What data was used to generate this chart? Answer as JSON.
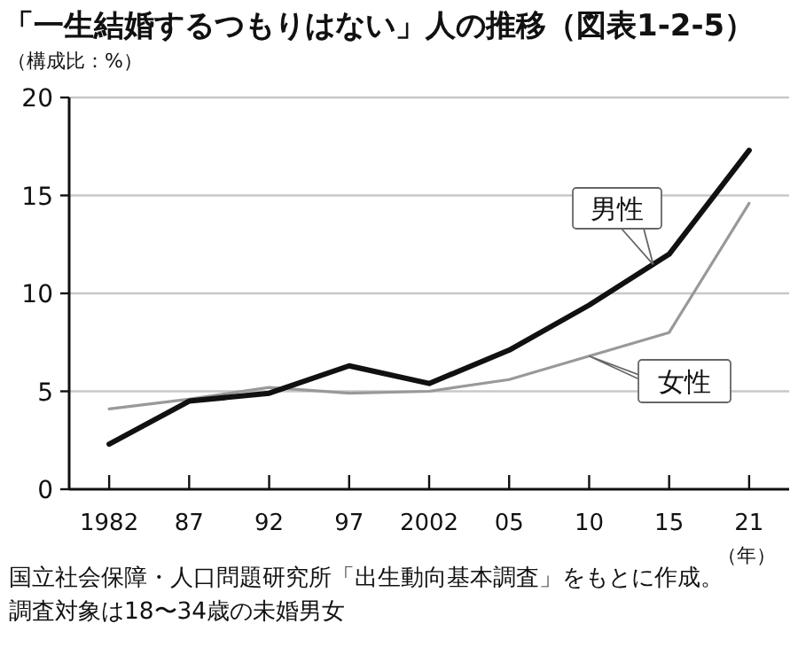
{
  "chart_data": {
    "type": "line",
    "title": "「一生結婚するつもりはない」人の推移（図表1-2-5）",
    "ylabel": "（構成比：%）",
    "xlabel": "（年）",
    "categories": [
      "1982",
      "87",
      "92",
      "97",
      "2002",
      "05",
      "10",
      "15",
      "21"
    ],
    "series": [
      {
        "name": "男性",
        "color": "#111111",
        "values": [
          2.3,
          4.5,
          4.9,
          6.3,
          5.4,
          7.1,
          9.4,
          12.0,
          17.3
        ]
      },
      {
        "name": "女性",
        "color": "#999999",
        "values": [
          4.1,
          4.6,
          5.2,
          4.9,
          5.0,
          5.6,
          6.8,
          8.0,
          14.6
        ]
      }
    ],
    "ylim": [
      0,
      20
    ],
    "yticks": [
      0,
      5,
      10,
      15,
      20
    ],
    "grid": "y",
    "legend": false,
    "marker": "none",
    "line_style": "solid",
    "annotations": [
      "国立社会保障・人口問題研究所「出生動向基本調査」をもとに作成。",
      "調査対象は18〜34歳の未婚男女"
    ]
  }
}
